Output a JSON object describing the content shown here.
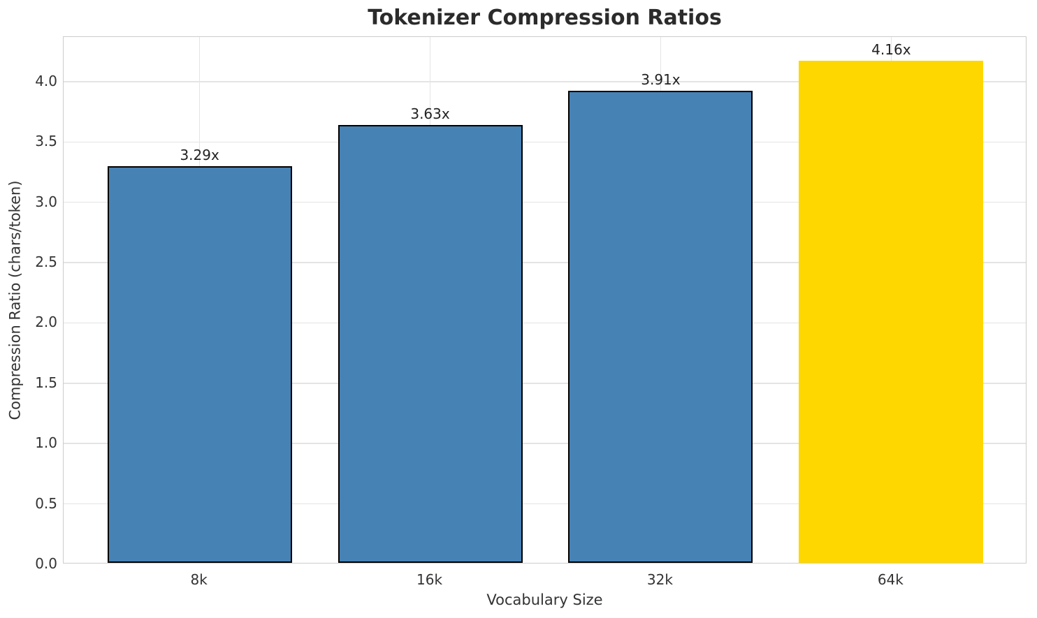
{
  "chart_data": {
    "type": "bar",
    "title": "Tokenizer Compression Ratios",
    "xlabel": "Vocabulary Size",
    "ylabel": "Compression Ratio (chars/token)",
    "categories": [
      "8k",
      "16k",
      "32k",
      "64k"
    ],
    "values": [
      3.29,
      3.63,
      3.91,
      4.16
    ],
    "bar_labels": [
      "3.29x",
      "3.63x",
      "3.91x",
      "4.16x"
    ],
    "bar_colors": [
      "#4682B4",
      "#4682B4",
      "#4682B4",
      "#FFD700"
    ],
    "bar_edge_colors": [
      "#000000",
      "#000000",
      "#000000",
      "none"
    ],
    "yticks": [
      0.0,
      0.5,
      1.0,
      1.5,
      2.0,
      2.5,
      3.0,
      3.5,
      4.0
    ],
    "ytick_labels": [
      "0.0",
      "0.5",
      "1.0",
      "1.5",
      "2.0",
      "2.5",
      "3.0",
      "3.5",
      "4.0"
    ],
    "ylim": [
      0,
      4.37
    ],
    "xlim_units": [
      -0.59,
      3.59
    ],
    "bar_width_units": 0.8,
    "grid": true,
    "legend": "none",
    "colors": {
      "grid": "#e4e4e4",
      "spine": "#cccccc",
      "tick_text": "#333333",
      "title_text": "#2b2b2b",
      "bar_label_text": "#222222"
    }
  }
}
